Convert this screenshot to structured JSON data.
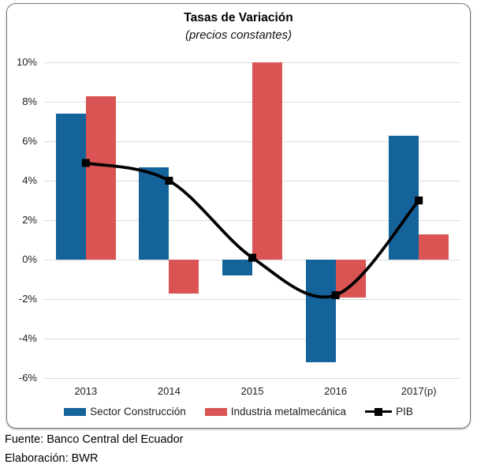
{
  "title": "Tasas de Variación",
  "subtitle": "(precios constantes)",
  "footer": {
    "line1": "Fuente: Banco Central del Ecuador",
    "line2": "Elaboración: BWR"
  },
  "colors": {
    "construction": "#15639b",
    "metal": "#d95452",
    "pib": "#000000",
    "grid": "#dcdcdc",
    "border": "#7c7c7c",
    "text": "#1c1c1c"
  },
  "legend": [
    {
      "label": "Sector Construcción",
      "type": "bar",
      "color": "#15639b"
    },
    {
      "label": "Industria metalmecánica",
      "type": "bar",
      "color": "#d95452"
    },
    {
      "label": "PIB",
      "type": "line",
      "color": "#000000"
    }
  ],
  "chart_data": {
    "type": "bar",
    "title": "Tasas de Variación",
    "subtitle": "(precios constantes)",
    "categories": [
      "2013",
      "2014",
      "2015",
      "2016",
      "2017(p)"
    ],
    "series": [
      {
        "name": "Sector Construcción",
        "type": "bar",
        "color": "#15639b",
        "values": [
          7.4,
          4.7,
          -0.8,
          -5.2,
          6.3
        ]
      },
      {
        "name": "Industria metalmecánica",
        "type": "bar",
        "color": "#d95452",
        "values": [
          8.3,
          -1.7,
          10.0,
          -1.9,
          1.3
        ]
      },
      {
        "name": "PIB",
        "type": "line",
        "color": "#000000",
        "marker": "square",
        "smooth": true,
        "values": [
          4.9,
          4.0,
          0.1,
          -1.8,
          3.0
        ]
      }
    ],
    "xlabel": "",
    "ylabel": "",
    "ylim": [
      -6,
      10
    ],
    "ytick_step": 2,
    "ytick_labels": [
      "10%",
      "8%",
      "6%",
      "4%",
      "2%",
      "0%",
      "-2%",
      "-4%",
      "-6%"
    ],
    "grid": true,
    "legend_position": "bottom"
  }
}
